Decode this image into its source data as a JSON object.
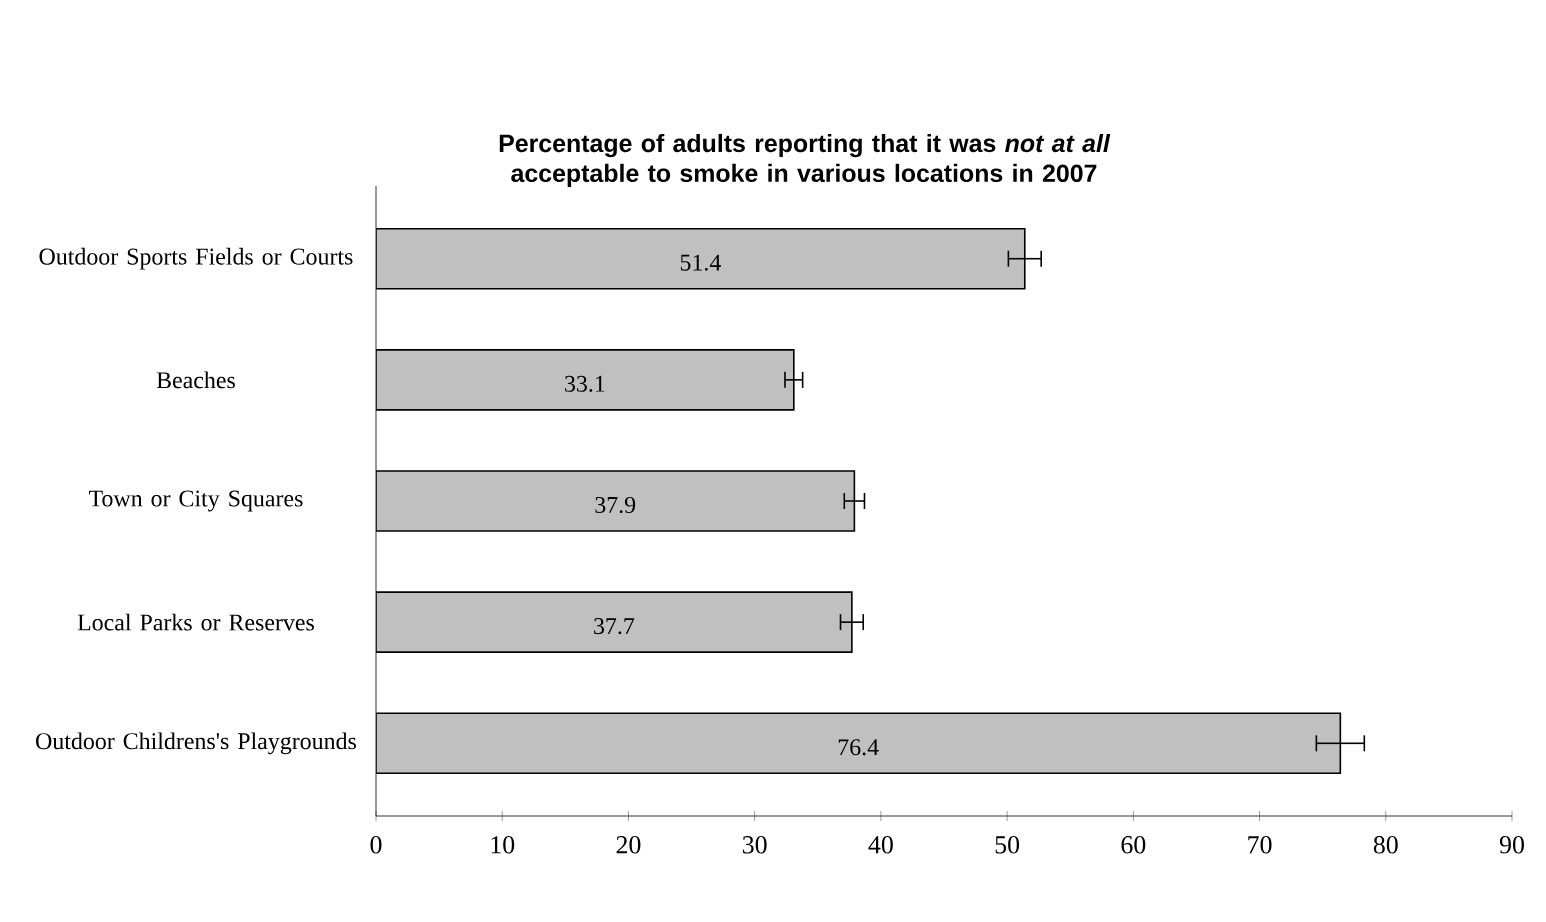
{
  "chart_data": {
    "type": "bar",
    "orientation": "horizontal",
    "title": "Percentage of adults reporting that it was *not at all* acceptable to smoke in various locations in 2007",
    "categories": [
      "Outdoor Sports Fields or Courts",
      "Beaches",
      "Town or City Squares",
      "Local Parks or Reserves",
      "Outdoor Childrens's Playgrounds"
    ],
    "values": [
      51.4,
      33.1,
      37.9,
      37.7,
      76.4
    ],
    "value_labels": [
      "51.4",
      "33.1",
      "37.9",
      "37.7",
      "76.4"
    ],
    "errors": [
      1.3,
      0.7,
      0.8,
      0.9,
      1.9
    ],
    "color": "#c0c0c0",
    "xlim": [
      0,
      90
    ],
    "xticks": [
      0,
      10,
      20,
      30,
      40,
      50,
      60,
      70,
      80,
      90
    ],
    "grid": false
  }
}
